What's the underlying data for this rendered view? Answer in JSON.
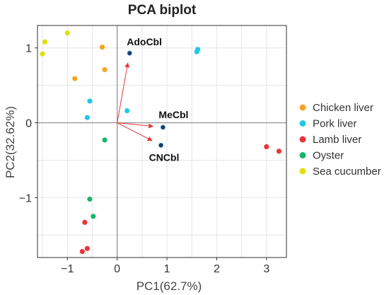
{
  "chart_data": {
    "type": "scatter",
    "title": "PCA biplot",
    "xlabel": "PC1(62.7%)",
    "ylabel": "PC2(32.62%)",
    "xlim": [
      -1.6,
      3.4
    ],
    "ylim": [
      -1.8,
      1.3
    ],
    "xticks": [
      -1,
      0,
      1,
      2,
      3
    ],
    "xtick_labels": [
      "−1",
      "0",
      "1",
      "2",
      "3"
    ],
    "yticks": [
      -1,
      0,
      1
    ],
    "ytick_labels": [
      "−1",
      "0",
      "1"
    ],
    "grid": true,
    "legend_position": "right",
    "series": [
      {
        "name": "Chicken liver",
        "color": "#F5A623",
        "points": [
          [
            -0.3,
            1.01
          ],
          [
            -0.25,
            0.71
          ],
          [
            -0.85,
            0.59
          ]
        ]
      },
      {
        "name": "Pork liver",
        "color": "#1FC8E8",
        "points": [
          [
            1.62,
            0.98
          ],
          [
            1.6,
            0.95
          ],
          [
            -0.55,
            0.29
          ],
          [
            -0.6,
            0.07
          ],
          [
            0.2,
            0.16
          ]
        ]
      },
      {
        "name": "Lamb liver",
        "color": "#E8363A",
        "points": [
          [
            3.0,
            -0.32
          ],
          [
            3.25,
            -0.38
          ],
          [
            -0.65,
            -1.33
          ],
          [
            -0.6,
            -1.68
          ],
          [
            -0.7,
            -1.72
          ]
        ]
      },
      {
        "name": "Oyster",
        "color": "#14B86A",
        "points": [
          [
            -0.25,
            -0.23
          ],
          [
            -0.55,
            -1.02
          ],
          [
            -0.48,
            -1.25
          ]
        ]
      },
      {
        "name": "Sea cucumber",
        "color": "#E0E00E",
        "points": [
          [
            -1.0,
            1.2
          ],
          [
            -1.45,
            1.08
          ],
          [
            -1.5,
            0.92
          ]
        ]
      }
    ],
    "loadings": [
      {
        "name": "AdoCbl",
        "x": 0.25,
        "y": 0.93
      },
      {
        "name": "MeCbl",
        "x": 0.92,
        "y": -0.06
      },
      {
        "name": "CNCbl",
        "x": 0.88,
        "y": -0.3
      }
    ],
    "colors": {
      "arrow": "#E8363A",
      "loading_point": "#1A3A6B",
      "zero_line": "#8C8C8C",
      "grid": "#E6E6E6",
      "frame": "#333333"
    }
  }
}
